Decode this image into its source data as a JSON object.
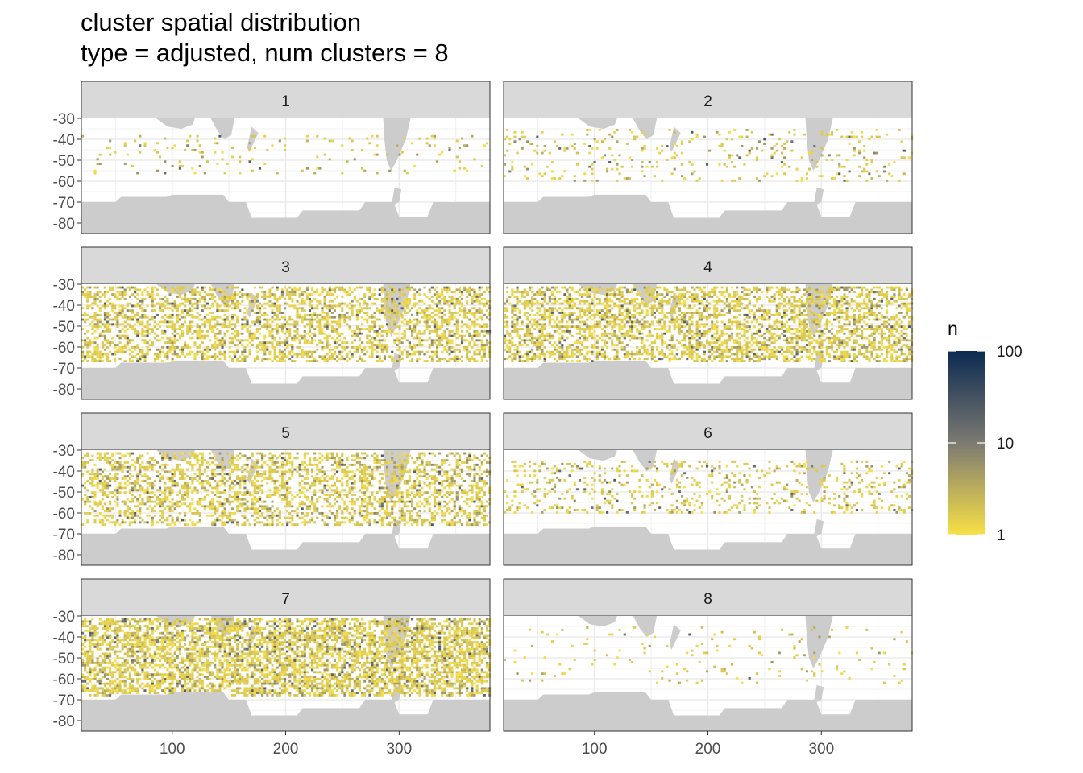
{
  "title": "cluster spatial distribution",
  "subtitle": "type = adjusted, num clusters = 8",
  "legend": {
    "title": "n",
    "scale": "log10",
    "breaks": [
      "100",
      "10",
      "1"
    ],
    "colors": [
      "#f8e046",
      "#7c7a72",
      "#0c2a52"
    ]
  },
  "chart_data": {
    "type": "heatmap",
    "facets": [
      "1",
      "2",
      "3",
      "4",
      "5",
      "6",
      "7",
      "8"
    ],
    "facet_layout": {
      "columns": 2,
      "rows": 4
    },
    "x_ticks": [
      "100",
      "200",
      "300"
    ],
    "y_ticks": [
      "-30",
      "-40",
      "-50",
      "-60",
      "-70",
      "-80"
    ],
    "xlim": [
      20,
      380
    ],
    "ylim": [
      -85,
      -30
    ],
    "fill": "n (count per cell)",
    "fill_range": [
      1,
      100
    ],
    "land_color": "#cccccc",
    "observation_density": {
      "1": "sparse, mostly near -40 to -55",
      "2": "bands near -40 to -60",
      "3": "dense across -30 to -68",
      "4": "dense across -30 to -68",
      "5": "dense across -30 to -65",
      "6": "band near -45 to -60",
      "7": "very dense across -30 to -68",
      "8": "very sparse"
    }
  }
}
